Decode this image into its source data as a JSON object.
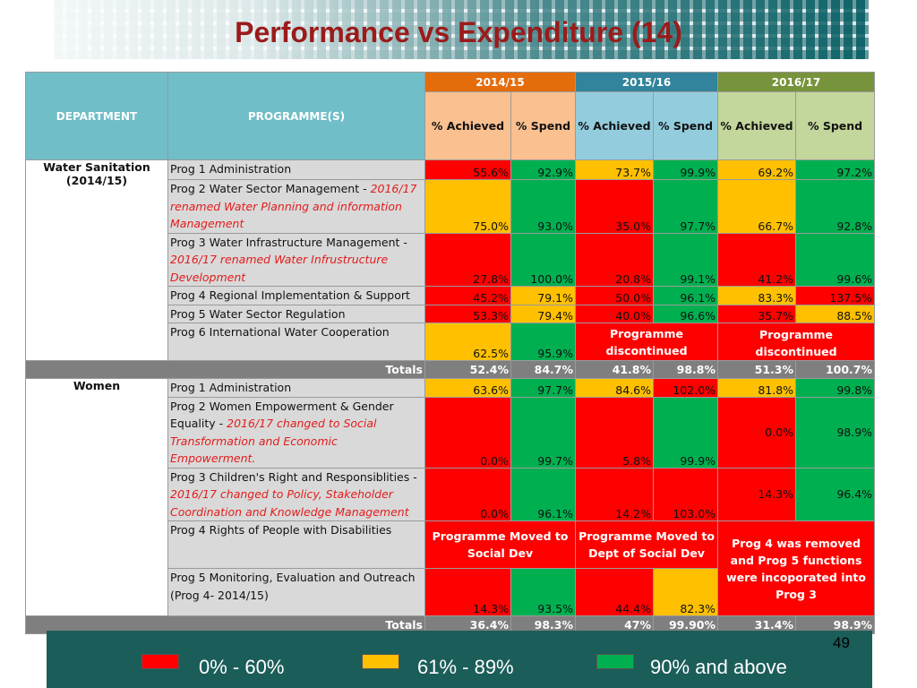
{
  "title": "Performance vs Expenditure (14)",
  "page_number": "49",
  "header": {
    "department": "DEPARTMENT",
    "programmes": "PROGRAMME(S)",
    "years": [
      "2014/15",
      "2015/16",
      "2016/17"
    ],
    "achieved": "% Achieved",
    "spend": "%  Spend",
    "spend_b": "% Spend"
  },
  "colors": {
    "red": "#ff0000",
    "orange": "#ffc000",
    "green": "#00b050"
  },
  "legend": [
    {
      "label": "0% - 60%",
      "color": "#ff0000"
    },
    {
      "label": "61% - 89%",
      "color": "#ffc000"
    },
    {
      "label": "90% and above",
      "color": "#00b050"
    }
  ],
  "water": {
    "dept": "Water Sanitation",
    "dept_year": "(2014/15)",
    "rows": [
      {
        "name": "Prog 1 Administration",
        "v": [
          "55.6%",
          "92.9%",
          "73.7%",
          "99.9%",
          "69.2%",
          "97.2%"
        ]
      },
      {
        "name": "Prog 2 Water Sector Management - ",
        "note": "2016/17 renamed  Water Planning and information Management",
        "v": [
          "75.0%",
          "93.0%",
          "35.0%",
          "97.7%",
          "66.7%",
          "92.8%"
        ]
      },
      {
        "name": "Prog 3 Water Infrastructure Management - ",
        "note": "2016/17 renamed Water Infrustructure Development",
        "v": [
          "27.8%",
          "100.0%",
          "20.8%",
          "99.1%",
          "41.2%",
          "99.6%"
        ]
      },
      {
        "name": "Prog 4 Regional Implementation & Support",
        "v": [
          "45.2%",
          "79.1%",
          "50.0%",
          "96.1%",
          "83.3%",
          "137.5%"
        ]
      },
      {
        "name": "Prog 5 Water Sector Regulation",
        "v": [
          "53.3%",
          "79.4%",
          "40.0%",
          "96.6%",
          "35.7%",
          "88.5%"
        ]
      },
      {
        "name": "Prog 6 International Water Cooperation",
        "v": [
          "62.5%",
          "95.9%"
        ],
        "msg_1516": "Programme discontinued",
        "msg_1617": "Programme discontinued"
      }
    ],
    "totals_label": "Totals",
    "totals": [
      "52.4%",
      "84.7%",
      "41.8%",
      "98.8%",
      "51.3%",
      "100.7%"
    ]
  },
  "women": {
    "dept": "Women",
    "rows": [
      {
        "name": "Prog 1 Administration",
        "v": [
          "63.6%",
          "97.7%",
          "84.6%",
          "102.0%",
          "81.8%",
          "99.8%"
        ]
      },
      {
        "name": "Prog 2 Women Empowerment & Gender Equality - ",
        "note": "2016/17 changed to  Social Transformation and Economic Empowerment.",
        "v": [
          "0.0%",
          "99.7%",
          "5.8%",
          "99.9%",
          "0.0%",
          "98.9%"
        ]
      },
      {
        "name": "Prog 3 Children's Right and Responsiblities - ",
        "note": "2016/17 changed to Policy, Stakeholder Coordination and Knowledge Management",
        "v": [
          "0.0%",
          "96.1%",
          "14.2%",
          "103.0%",
          "14.3%",
          "96.4%"
        ]
      },
      {
        "name": "Prog 4 Rights of People with Disabilities",
        "msg_1415": "Programme Moved to Social Dev",
        "msg_1516": "Programme Moved to Dept of Social Dev"
      },
      {
        "name": "Prog 5 Monitoring, Evaluation and Outreach (Prog 4- 2014/15)",
        "v": [
          "14.3%",
          "93.5%",
          "44.4%",
          "82.3%"
        ]
      }
    ],
    "msg_1617": "Prog 4 was removed and Prog 5 functions were incoporated into Prog 3",
    "totals_label": "Totals",
    "totals": [
      "36.4%",
      "98.3%",
      "47%",
      "99.90%",
      "31.4%",
      "98.9%"
    ]
  }
}
